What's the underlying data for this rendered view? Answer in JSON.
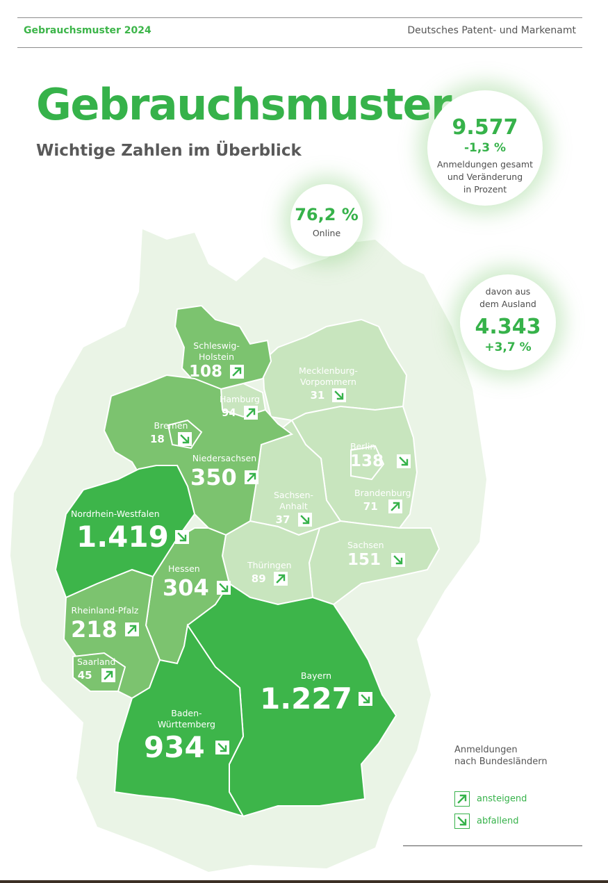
{
  "header": {
    "left": "Gebrauchsmuster 2024",
    "right": "Deutsches Patent- und Markenamt"
  },
  "title": "Gebrauchsmuster",
  "subtitle": "Wichtige Zahlen im Überblick",
  "stats": {
    "total_value": "9.577",
    "total_change": "-1,3 %",
    "total_label_1": "Anmeldungen gesamt",
    "total_label_2": "und Veränderung",
    "total_label_3": "in Prozent",
    "online_value": "76,2 %",
    "online_label": "Online",
    "abroad_label_1": "davon aus",
    "abroad_label_2": "dem Ausland",
    "abroad_value": "4.343",
    "abroad_change": "+3,7 %"
  },
  "states": {
    "sh": {
      "name1": "Schleswig-",
      "name2": "Holstein",
      "value": "108",
      "trend": "up"
    },
    "hh": {
      "name1": "Hamburg",
      "value": "94",
      "trend": "up"
    },
    "mv": {
      "name1": "Mecklenburg-",
      "name2": "Vorpommern",
      "value": "31",
      "trend": "down"
    },
    "hb": {
      "name1": "Bremen",
      "value": "18",
      "trend": "down"
    },
    "ni": {
      "name1": "Niedersachsen",
      "value": "350",
      "trend": "up"
    },
    "be": {
      "name1": "Berlin",
      "value": "138",
      "trend": "down"
    },
    "st": {
      "name1": "Sachsen-",
      "name2": "Anhalt",
      "value": "37",
      "trend": "down"
    },
    "bb": {
      "name1": "Brandenburg",
      "value": "71",
      "trend": "up"
    },
    "nw": {
      "name1": "Nordrhein-Westfalen",
      "value": "1.419",
      "trend": "down"
    },
    "sn": {
      "name1": "Sachsen",
      "value": "151",
      "trend": "down"
    },
    "he": {
      "name1": "Hessen",
      "value": "304",
      "trend": "down"
    },
    "th": {
      "name1": "Thüringen",
      "value": "89",
      "trend": "up"
    },
    "rp": {
      "name1": "Rheinland-Pfalz",
      "value": "218",
      "trend": "up"
    },
    "sl": {
      "name1": "Saarland",
      "value": "45",
      "trend": "up"
    },
    "by": {
      "name1": "Bayern",
      "value": "1.227",
      "trend": "down"
    },
    "bw": {
      "name1": "Baden-",
      "name2": "Württemberg",
      "value": "934",
      "trend": "down"
    }
  },
  "legend": {
    "title_1": "Anmeldungen",
    "title_2": "nach Bundesländern",
    "up_label": "ansteigend",
    "down_label": "abfallend"
  },
  "colors": {
    "accent": "#36b24a",
    "tier_high": "#3db54a",
    "tier_mid": "#7cc36f",
    "tier_low": "#c8e5be",
    "background_land": "#eaf4e6"
  }
}
